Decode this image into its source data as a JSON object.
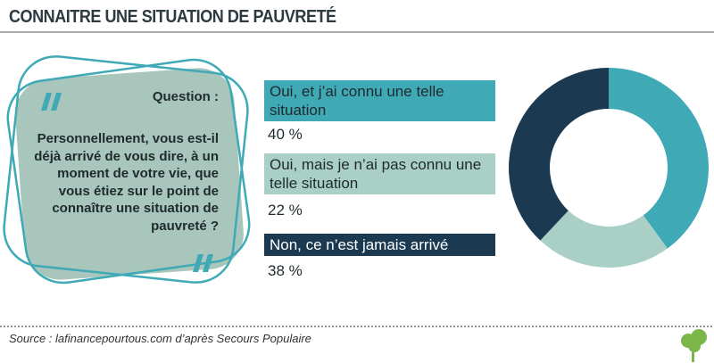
{
  "chart_data": {
    "type": "pie",
    "title": "CONNAITRE UNE SITUATION DE PAUVRETÉ",
    "categories": [
      "Oui, et j’ai connu une telle situation",
      "Oui, mais je n’ai pas connu une telle situation",
      "Non, ce n’est jamais arrivé"
    ],
    "values": [
      40,
      22,
      38
    ],
    "value_labels": [
      "40 %",
      "22 %",
      "38 %"
    ],
    "colors": [
      "#3fa9b5",
      "#a9cfc6",
      "#1b3a52"
    ],
    "donut": true
  },
  "question": {
    "label": "Question :",
    "text": "Personnellement, vous est-il déjà arrivé de vous dire, à un moment de votre vie, que vous étiez sur le point de connaître une situation de pauvreté ?"
  },
  "source": "Source : lafinancepourtous.com d’après Secours Populaire"
}
